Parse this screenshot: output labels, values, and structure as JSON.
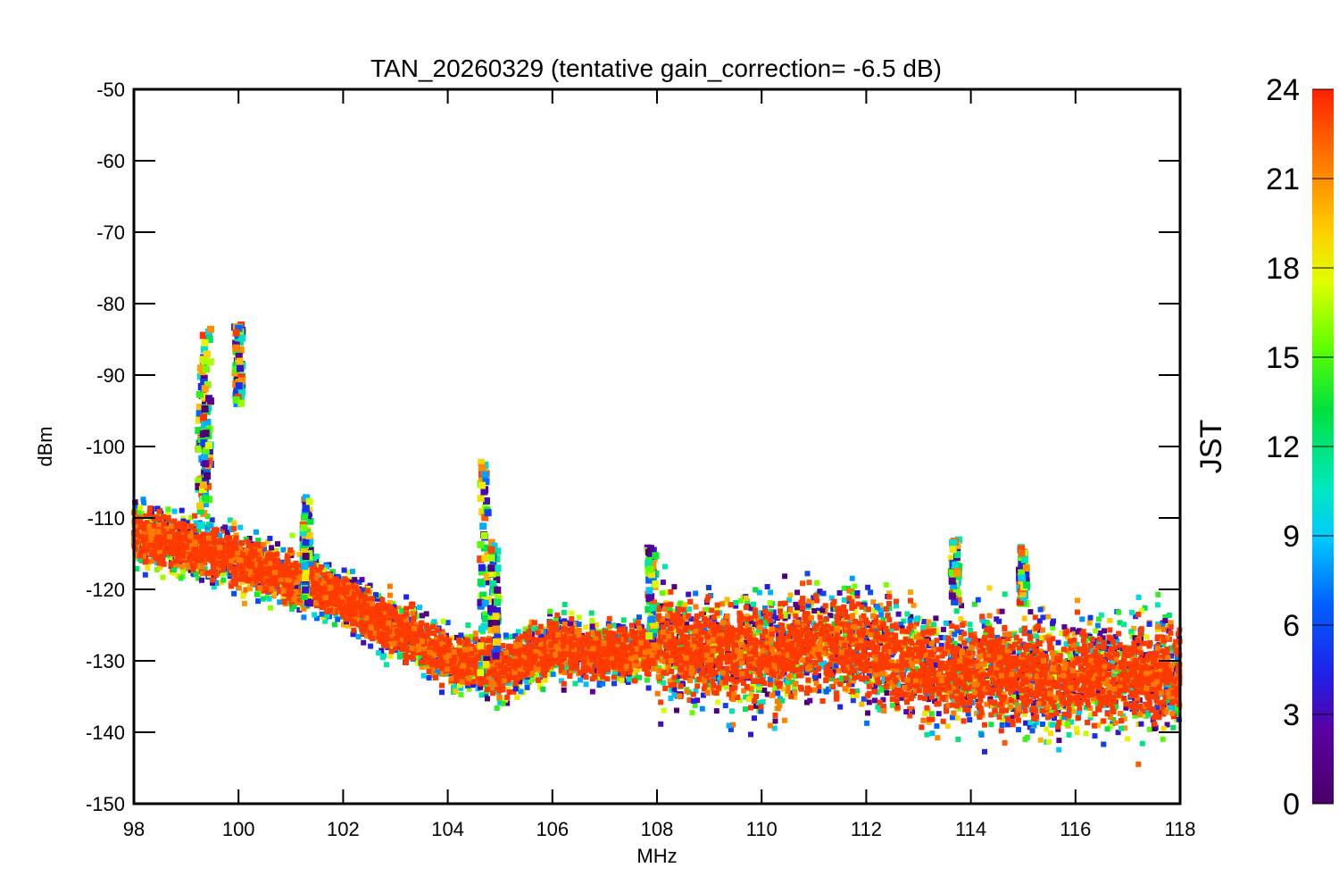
{
  "chart_data": {
    "type": "scatter",
    "title": "TAN_20260329 (tentative gain_correction= -6.5 dB)",
    "xlabel": "MHz",
    "ylabel": "dBm",
    "xlim": [
      98,
      118
    ],
    "ylim": [
      -150,
      -50
    ],
    "xticks": [
      98,
      100,
      102,
      104,
      106,
      108,
      110,
      112,
      114,
      116,
      118
    ],
    "yticks": [
      -50,
      -60,
      -70,
      -80,
      -90,
      -100,
      -110,
      -120,
      -130,
      -140,
      -150
    ],
    "x_tick_labels": [
      "98",
      "100",
      "102",
      "104",
      "106",
      "108",
      "110",
      "112",
      "114",
      "116",
      "118"
    ],
    "y_tick_labels": [
      "-50",
      "-60",
      "-70",
      "-80",
      "-90",
      "-100",
      "-110",
      "-120",
      "-130",
      "-140",
      "-150"
    ],
    "colorbar": {
      "label": "JST",
      "range": [
        0,
        24
      ],
      "ticks": [
        0,
        3,
        6,
        9,
        12,
        15,
        18,
        21,
        24
      ],
      "tick_labels": [
        "0",
        "3",
        "6",
        "9",
        "12",
        "15",
        "18",
        "21",
        "24"
      ]
    },
    "noise_floor": {
      "description_points_x": [
        98,
        100,
        102,
        104,
        104.6,
        105,
        106,
        107,
        108,
        110,
        111.5,
        113,
        115,
        118
      ],
      "median_dBm": [
        -112,
        -116,
        -121,
        -130,
        -130,
        -131,
        -128,
        -129,
        -128,
        -129,
        -127,
        -131,
        -132,
        -132
      ]
    },
    "peaks": [
      {
        "x": 99.3,
        "top_dBm": -87,
        "bottom_dBm": -112
      },
      {
        "x": 99.4,
        "top_dBm": -83,
        "bottom_dBm": -108
      },
      {
        "x": 100.0,
        "top_dBm": -83,
        "bottom_dBm": -94
      },
      {
        "x": 101.3,
        "top_dBm": -107,
        "bottom_dBm": -122
      },
      {
        "x": 104.7,
        "top_dBm": -101,
        "bottom_dBm": -132
      },
      {
        "x": 104.9,
        "top_dBm": -113,
        "bottom_dBm": -130
      },
      {
        "x": 107.9,
        "top_dBm": -114,
        "bottom_dBm": -127
      },
      {
        "x": 113.7,
        "top_dBm": -113,
        "bottom_dBm": -122
      },
      {
        "x": 115.0,
        "top_dBm": -114,
        "bottom_dBm": -122
      }
    ]
  }
}
